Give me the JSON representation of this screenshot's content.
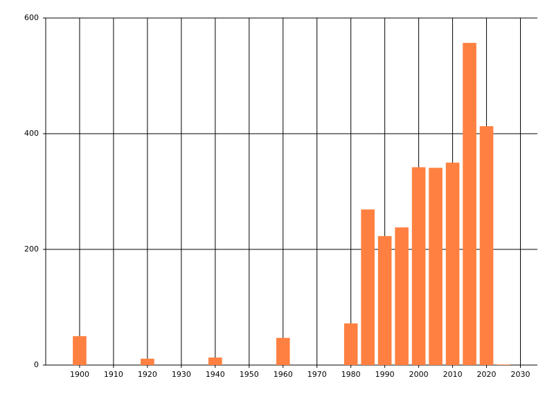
{
  "chart_data": {
    "type": "bar",
    "x": [
      1900,
      1920,
      1940,
      1960,
      1980,
      1985,
      1990,
      1995,
      2000,
      2005,
      2010,
      2015,
      2020,
      2025
    ],
    "values": [
      50,
      11,
      13,
      47,
      72,
      269,
      223,
      238,
      342,
      341,
      350,
      557,
      413,
      1
    ],
    "color": "#ff8040",
    "xlim": [
      1890,
      2035
    ],
    "xticks": [
      1900,
      1910,
      1920,
      1930,
      1940,
      1950,
      1960,
      1970,
      1980,
      1990,
      2000,
      2010,
      2020,
      2030
    ],
    "ylim": [
      0,
      600
    ],
    "yticks": [
      0,
      200,
      400,
      600
    ],
    "grid": true
  }
}
